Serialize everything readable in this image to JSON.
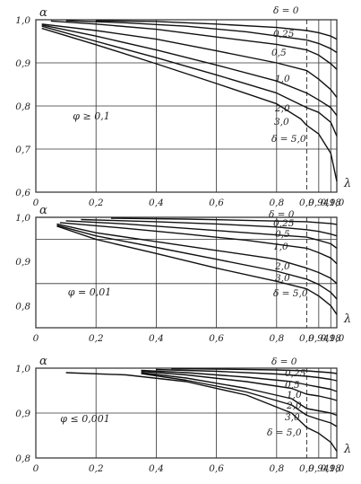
{
  "chart_data": [
    {
      "type": "line",
      "xlabel": "λ",
      "ylabel": "α",
      "condition": "φ ≥ 0,1",
      "legend_symbol": "δ",
      "ylim": [
        0.6,
        1.0
      ],
      "xlim": [
        0,
        1.0
      ],
      "x_ticks": [
        "0",
        "0,2",
        "0,4",
        "0,6",
        "0,8",
        "0,9",
        "0,94",
        "0,98",
        "1,0"
      ],
      "y_ticks": [
        "0,6",
        "0,7",
        "0,8",
        "0,9",
        "1,0"
      ],
      "series": [
        {
          "name": "δ = 0",
          "x": [
            0.2,
            0.4,
            0.6,
            0.8,
            0.9,
            0.94,
            0.98,
            1.0
          ],
          "y": [
            0.998,
            0.996,
            0.99,
            0.982,
            0.975,
            0.97,
            0.962,
            0.955
          ]
        },
        {
          "name": "0,25",
          "x": [
            0.1,
            0.3,
            0.5,
            0.7,
            0.9,
            0.94,
            0.98,
            1.0
          ],
          "y": [
            0.998,
            0.993,
            0.985,
            0.972,
            0.953,
            0.945,
            0.933,
            0.924
          ]
        },
        {
          "name": "0,5",
          "x": [
            0.05,
            0.2,
            0.4,
            0.6,
            0.8,
            0.9,
            0.94,
            0.98,
            1.0
          ],
          "y": [
            0.997,
            0.99,
            0.978,
            0.96,
            0.943,
            0.93,
            0.918,
            0.898,
            0.885
          ]
        },
        {
          "name": "1,0",
          "x": [
            0.02,
            0.2,
            0.4,
            0.6,
            0.8,
            0.9,
            0.94,
            0.98,
            1.0
          ],
          "y": [
            0.99,
            0.975,
            0.955,
            0.928,
            0.9,
            0.882,
            0.862,
            0.838,
            0.82
          ]
        },
        {
          "name": "2,0",
          "x": [
            0.02,
            0.2,
            0.4,
            0.6,
            0.8,
            0.9,
            0.94,
            0.98,
            1.0
          ],
          "y": [
            0.988,
            0.962,
            0.93,
            0.895,
            0.858,
            0.83,
            0.814,
            0.796,
            0.778
          ]
        },
        {
          "name": "3,0",
          "x": [
            0.02,
            0.2,
            0.4,
            0.6,
            0.8,
            0.9,
            0.94,
            0.98,
            1.0
          ],
          "y": [
            0.985,
            0.95,
            0.912,
            0.872,
            0.83,
            0.796,
            0.785,
            0.762,
            0.73
          ]
        },
        {
          "name": "δ = 5,0",
          "x": [
            0.02,
            0.2,
            0.4,
            0.6,
            0.8,
            0.88,
            0.9,
            0.94,
            0.98,
            1.0
          ],
          "y": [
            0.98,
            0.942,
            0.898,
            0.852,
            0.805,
            0.77,
            0.755,
            0.735,
            0.69,
            0.625
          ]
        }
      ]
    },
    {
      "type": "line",
      "xlabel": "λ",
      "ylabel": "α",
      "condition": "φ = 0,01",
      "legend_symbol": "δ",
      "ylim": [
        0.75,
        1.0
      ],
      "xlim": [
        0,
        1.0
      ],
      "x_ticks": [
        "0",
        "0,2",
        "0,4",
        "0,6",
        "0,8",
        "0,9",
        "0,94",
        "0,98",
        "1,0"
      ],
      "y_ticks": [
        "0,8",
        "0,9",
        "1,0"
      ],
      "series": [
        {
          "name": "δ = 0",
          "x": [
            0.25,
            0.5,
            0.7,
            0.9,
            0.94,
            0.98,
            1.0
          ],
          "y": [
            0.998,
            0.996,
            0.993,
            0.99,
            0.988,
            0.986,
            0.984
          ]
        },
        {
          "name": "0,25",
          "x": [
            0.15,
            0.4,
            0.6,
            0.8,
            0.9,
            0.94,
            0.98,
            1.0
          ],
          "y": [
            0.995,
            0.99,
            0.985,
            0.978,
            0.972,
            0.968,
            0.962,
            0.958
          ]
        },
        {
          "name": "0,5",
          "x": [
            0.1,
            0.3,
            0.5,
            0.7,
            0.9,
            0.94,
            0.98,
            1.0
          ],
          "y": [
            0.992,
            0.985,
            0.975,
            0.965,
            0.955,
            0.948,
            0.94,
            0.93
          ]
        },
        {
          "name": "1,0",
          "x": [
            0.08,
            0.3,
            0.5,
            0.7,
            0.9,
            0.94,
            0.98,
            1.0
          ],
          "y": [
            0.988,
            0.975,
            0.962,
            0.948,
            0.93,
            0.92,
            0.908,
            0.895
          ]
        },
        {
          "name": "2,0",
          "x": [
            0.07,
            0.2,
            0.4,
            0.6,
            0.8,
            0.9,
            0.94,
            0.98,
            1.0
          ],
          "y": [
            0.985,
            0.965,
            0.945,
            0.925,
            0.905,
            0.885,
            0.875,
            0.862,
            0.85
          ]
        },
        {
          "name": "3,0",
          "x": [
            0.07,
            0.2,
            0.4,
            0.6,
            0.8,
            0.9,
            0.94,
            0.98,
            1.0
          ],
          "y": [
            0.982,
            0.958,
            0.932,
            0.905,
            0.878,
            0.86,
            0.848,
            0.83,
            0.815
          ]
        },
        {
          "name": "δ = 5,0",
          "x": [
            0.07,
            0.2,
            0.4,
            0.6,
            0.8,
            0.9,
            0.94,
            0.98,
            1.0
          ],
          "y": [
            0.98,
            0.95,
            0.918,
            0.885,
            0.855,
            0.838,
            0.822,
            0.8,
            0.78
          ]
        }
      ]
    },
    {
      "type": "line",
      "xlabel": "λ",
      "ylabel": "α",
      "condition": "φ ≤ 0,001",
      "legend_symbol": "δ",
      "ylim": [
        0.8,
        1.0
      ],
      "xlim": [
        0,
        1.0
      ],
      "x_ticks": [
        "0",
        "0,2",
        "0,4",
        "0,6",
        "0,8",
        "0,9",
        "0,94",
        "0,98",
        "1,0"
      ],
      "y_ticks": [
        "0,8",
        "0,9",
        "1,0"
      ],
      "series": [
        {
          "name": "δ = 0",
          "x": [
            0.45,
            0.6,
            0.8,
            0.9,
            0.94,
            0.98,
            1.0
          ],
          "y": [
            0.999,
            0.998,
            0.996,
            0.994,
            0.992,
            0.99,
            0.988
          ]
        },
        {
          "name": "0,25",
          "x": [
            0.4,
            0.6,
            0.8,
            0.9,
            0.94,
            0.98,
            1.0
          ],
          "y": [
            0.997,
            0.993,
            0.987,
            0.982,
            0.979,
            0.975,
            0.972
          ]
        },
        {
          "name": "0,5",
          "x": [
            0.35,
            0.5,
            0.7,
            0.85,
            0.9,
            0.94,
            0.98,
            1.0
          ],
          "y": [
            0.995,
            0.99,
            0.98,
            0.97,
            0.963,
            0.958,
            0.953,
            0.948
          ]
        },
        {
          "name": "1,0",
          "x": [
            0.35,
            0.5,
            0.7,
            0.85,
            0.9,
            0.94,
            0.98,
            1.0
          ],
          "y": [
            0.993,
            0.985,
            0.97,
            0.955,
            0.942,
            0.938,
            0.932,
            0.928
          ]
        },
        {
          "name": "2,0",
          "x": [
            0.35,
            0.5,
            0.7,
            0.85,
            0.9,
            0.94,
            0.98,
            1.0
          ],
          "y": [
            0.99,
            0.978,
            0.955,
            0.932,
            0.91,
            0.905,
            0.9,
            0.895
          ]
        },
        {
          "name": "3,0",
          "x": [
            0.35,
            0.5,
            0.7,
            0.85,
            0.9,
            0.94,
            0.98,
            1.0
          ],
          "y": [
            0.988,
            0.973,
            0.947,
            0.918,
            0.895,
            0.886,
            0.878,
            0.87
          ]
        },
        {
          "name": "δ = 5,0",
          "x": [
            0.1,
            0.3,
            0.5,
            0.7,
            0.85,
            0.9,
            0.94,
            0.98,
            1.0
          ],
          "y": [
            0.99,
            0.985,
            0.97,
            0.94,
            0.9,
            0.868,
            0.855,
            0.835,
            0.815
          ]
        }
      ]
    }
  ]
}
